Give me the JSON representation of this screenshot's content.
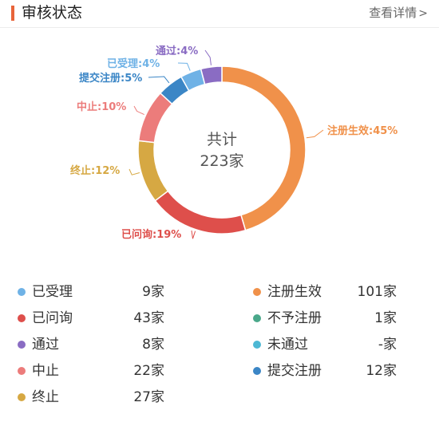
{
  "header": {
    "title": "审核状态",
    "more_label": "查看详情",
    "chevron": ">"
  },
  "center": {
    "line1": "共计",
    "line2": "223家"
  },
  "chart_data": {
    "type": "pie",
    "style": "donut",
    "slices": [
      {
        "label": "注册生效",
        "pct": 45,
        "text": "注册生效:45%",
        "color": "#f0914a"
      },
      {
        "label": "已问询",
        "pct": 19,
        "text": "已问询:19%",
        "color": "#de4f4b"
      },
      {
        "label": "终止",
        "pct": 12,
        "text": "终止:12%",
        "color": "#d6a843"
      },
      {
        "label": "中止",
        "pct": 10,
        "text": "中止:10%",
        "color": "#ec7c7b"
      },
      {
        "label": "提交注册",
        "pct": 5,
        "text": "提交注册:5%",
        "color": "#3b86c6"
      },
      {
        "label": "已受理",
        "pct": 4,
        "text": "已受理:4%",
        "color": "#6fb2e6"
      },
      {
        "label": "通过",
        "pct": 4,
        "text": "通过:4%",
        "color": "#8a6cc3"
      }
    ]
  },
  "legend": {
    "left": [
      {
        "label": "已受理",
        "count": "9家",
        "color": "#6fb2e6"
      },
      {
        "label": "已问询",
        "count": "43家",
        "color": "#de4f4b"
      },
      {
        "label": "通过",
        "count": "8家",
        "color": "#8a6cc3"
      },
      {
        "label": "中止",
        "count": "22家",
        "color": "#ec7c7b"
      },
      {
        "label": "终止",
        "count": "27家",
        "color": "#d6a843"
      }
    ],
    "right": [
      {
        "label": "注册生效",
        "count": "101家",
        "color": "#f0914a"
      },
      {
        "label": "不予注册",
        "count": "1家",
        "color": "#4aa88a"
      },
      {
        "label": "未通过",
        "count": "-家",
        "color": "#4db8d4"
      },
      {
        "label": "提交注册",
        "count": "12家",
        "color": "#3b86c6"
      }
    ]
  }
}
